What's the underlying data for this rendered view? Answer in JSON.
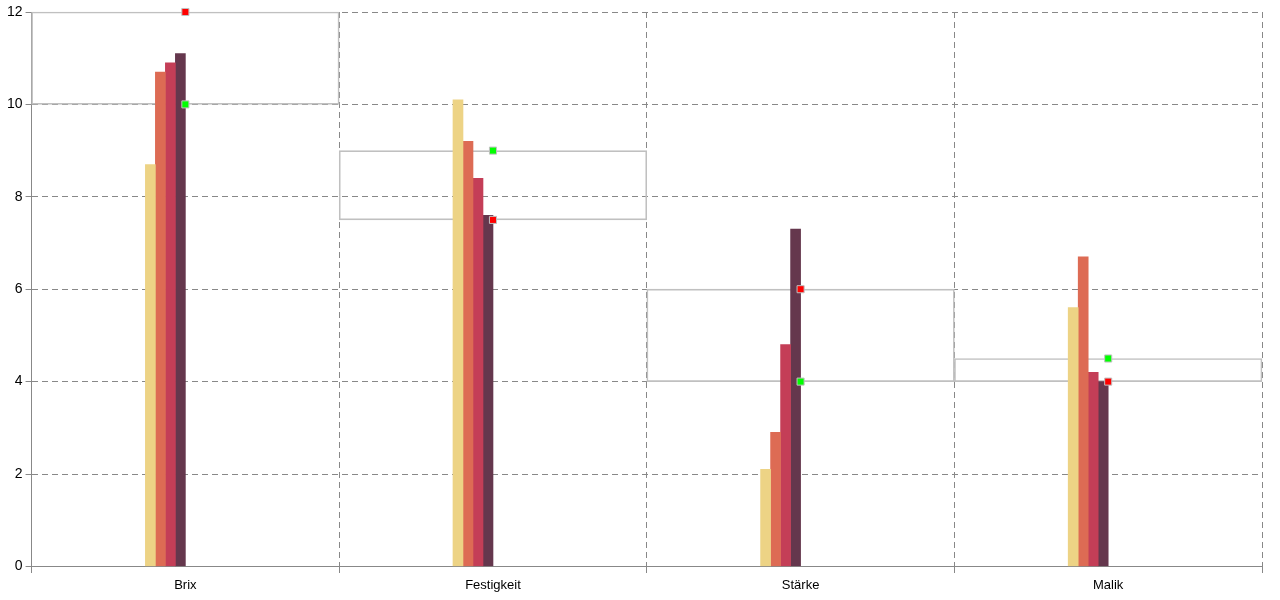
{
  "chart_data": {
    "type": "bar",
    "categories": [
      "Brix",
      "Festigkeit",
      "Stärke",
      "Malik"
    ],
    "series": [
      {
        "color": "#edd385",
        "values": [
          8.7,
          10.1,
          2.1,
          5.6
        ]
      },
      {
        "color": "#dd6b54",
        "values": [
          10.7,
          9.2,
          2.9,
          6.7
        ]
      },
      {
        "color": "#c43e57",
        "values": [
          10.9,
          8.4,
          4.8,
          4.2
        ]
      },
      {
        "color": "#65374d",
        "values": [
          11.1,
          7.6,
          7.3,
          4.0
        ]
      },
      {
        "type": "bar",
        "color": "#c0c0c0",
        "base": [
          10,
          7.5,
          4,
          4
        ],
        "values": [
          2,
          1.5,
          2,
          0.5
        ]
      },
      {
        "type": "scatter",
        "color": "#ff0000",
        "x": [
          "Brix",
          "Festigkeit",
          "Stärke",
          "Malik"
        ],
        "values": [
          12,
          7.5,
          6,
          4
        ]
      },
      {
        "type": "scatter",
        "color": "#00ff00",
        "x": [
          "Brix",
          "Festigkeit",
          "Stärke",
          "Malik"
        ],
        "values": [
          10,
          9,
          4,
          4.5
        ]
      }
    ],
    "marker": "square",
    "ylim": [
      0,
      12
    ],
    "yticks": [
      0,
      2,
      4,
      6,
      8,
      10,
      12
    ],
    "grid": true,
    "legend": false
  }
}
